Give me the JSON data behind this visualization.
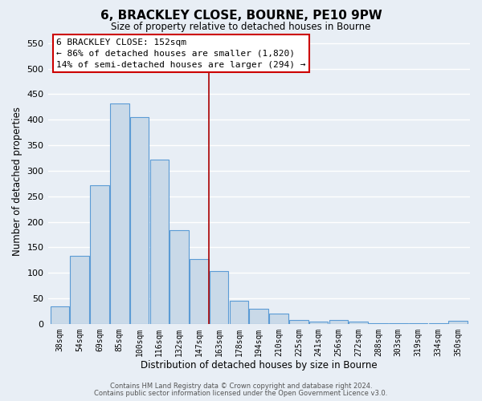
{
  "title": "6, BRACKLEY CLOSE, BOURNE, PE10 9PW",
  "subtitle": "Size of property relative to detached houses in Bourne",
  "xlabel": "Distribution of detached houses by size in Bourne",
  "ylabel": "Number of detached properties",
  "bar_labels": [
    "38sqm",
    "54sqm",
    "69sqm",
    "85sqm",
    "100sqm",
    "116sqm",
    "132sqm",
    "147sqm",
    "163sqm",
    "178sqm",
    "194sqm",
    "210sqm",
    "225sqm",
    "241sqm",
    "256sqm",
    "272sqm",
    "288sqm",
    "303sqm",
    "319sqm",
    "334sqm",
    "350sqm"
  ],
  "bar_values": [
    35,
    133,
    272,
    432,
    405,
    322,
    183,
    127,
    103,
    45,
    30,
    20,
    7,
    5,
    8,
    4,
    2,
    2,
    1,
    1,
    6
  ],
  "bar_color": "#c9d9e8",
  "bar_edge_color": "#5b9bd5",
  "vline_color": "#aa0000",
  "vline_x": 7.5,
  "annotation_title": "6 BRACKLEY CLOSE: 152sqm",
  "annotation_line1": "← 86% of detached houses are smaller (1,820)",
  "annotation_line2": "14% of semi-detached houses are larger (294) →",
  "annotation_box_color": "#ffffff",
  "annotation_box_edge": "#cc0000",
  "ylim": [
    0,
    560
  ],
  "yticks": [
    0,
    50,
    100,
    150,
    200,
    250,
    300,
    350,
    400,
    450,
    500,
    550
  ],
  "background_color": "#e8eef5",
  "grid_color": "#ffffff",
  "footer_line1": "Contains HM Land Registry data © Crown copyright and database right 2024.",
  "footer_line2": "Contains public sector information licensed under the Open Government Licence v3.0."
}
